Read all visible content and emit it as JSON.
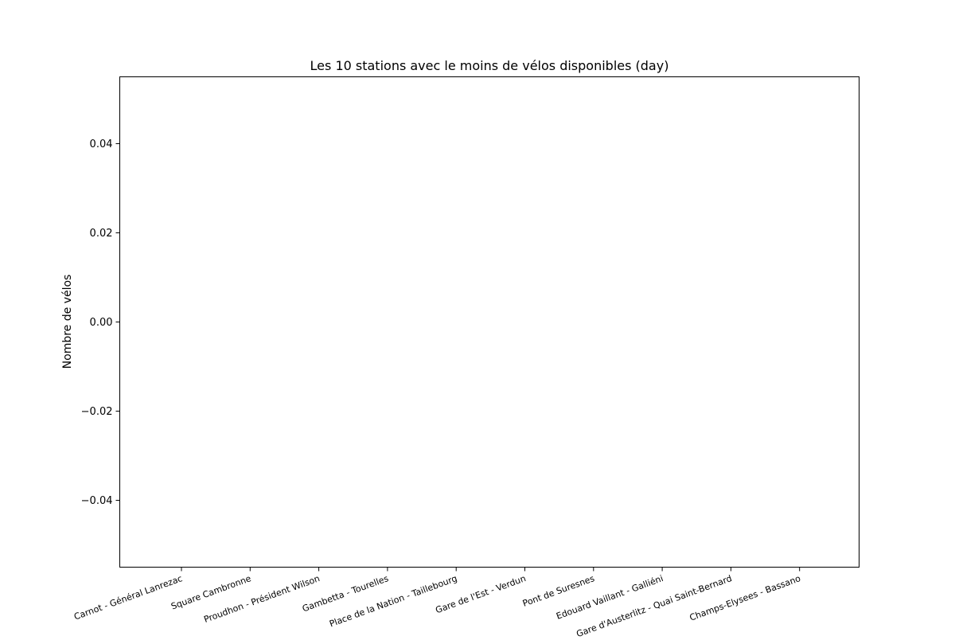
{
  "chart_data": {
    "type": "bar",
    "title": "Les 10 stations avec le moins de vélos disponibles (day)",
    "xlabel": "",
    "ylabel": "Nombre de vélos",
    "categories": [
      "Carnot - Général Lanrezac",
      "Square Cambronne",
      "Proudhon - Président Wilson",
      "Gambetta - Tourelles",
      "Place de la Nation - Taillebourg",
      "Gare de l'Est - Verdun",
      "Pont de Suresnes",
      "Edouard Vaillant - Galliéni",
      "Gare d'Austerlitz - Quai Saint-Bernard",
      "Champs-Elysees - Bassano"
    ],
    "values": [
      0,
      0,
      0,
      0,
      0,
      0,
      0,
      0,
      0,
      0
    ],
    "ylim": [
      -0.055,
      0.055
    ],
    "yticks": [
      -0.04,
      -0.02,
      0.0,
      0.02,
      0.04
    ],
    "ytick_labels": [
      "−0.04",
      "−0.02",
      "0.00",
      "0.02",
      "0.04"
    ],
    "grid": false,
    "legend": "none",
    "colors": {
      "bar": "#1f77b4",
      "axes": "#000000",
      "background": "#ffffff"
    }
  }
}
